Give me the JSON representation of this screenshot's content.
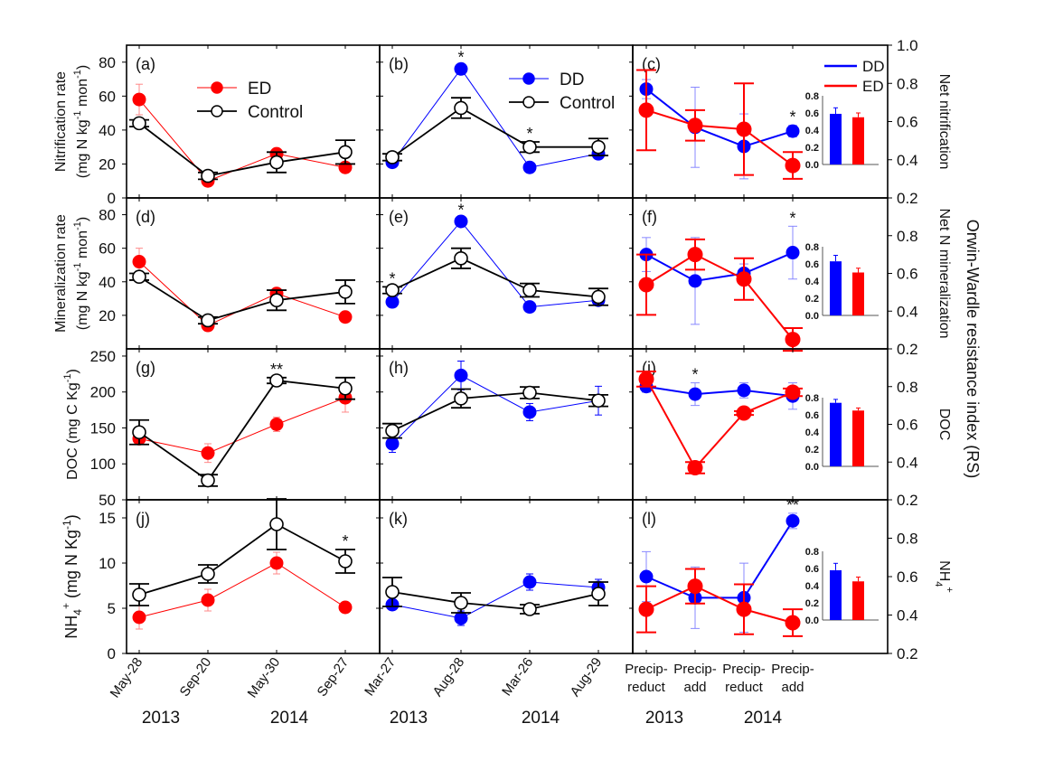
{
  "chart_data": {
    "type": "line",
    "right_axis_title": "Orwin-Wardle resistance index (RS)",
    "columns": [
      {
        "categories": [
          "May-28",
          "Sep-20",
          "May-30",
          "Sep-27"
        ],
        "years": [
          "2013",
          "2014"
        ]
      },
      {
        "categories": [
          "Mar-27",
          "Aug-28",
          "Mar-26",
          "Aug-29"
        ],
        "years": [
          "2013",
          "2014"
        ]
      },
      {
        "categories": [
          "Precip-\nreduct",
          "Precip-\nadd",
          "Precip-\nreduct",
          "Precip-\nadd"
        ],
        "years": [
          "2013",
          "2014"
        ]
      }
    ],
    "colors": {
      "ED": "#ff0000",
      "DD": "#0000ff",
      "Control": "#000000"
    },
    "rows": [
      {
        "ylabel": [
          "Nitrification rate",
          "(mg N kg-1 mon-1)"
        ],
        "ylim": [
          0,
          90
        ],
        "yticks": [
          0,
          20,
          40,
          60,
          80
        ],
        "rs_label": "Net nitrification",
        "rs_ylim": [
          0.2,
          1.0
        ],
        "rs_ticks": [
          0.2,
          0.4,
          0.6,
          0.8,
          1.0
        ],
        "panels": [
          {
            "label": "(a)",
            "legend": [
              "ED",
              "Control"
            ],
            "series": [
              {
                "name": "ED",
                "values": [
                  58,
                  10,
                  26,
                  18
                ],
                "err": [
                  9,
                  2,
                  2,
                  3
                ]
              },
              {
                "name": "Control",
                "values": [
                  44,
                  13,
                  21,
                  27
                ],
                "err": [
                  2,
                  2,
                  6,
                  7
                ]
              }
            ],
            "stars": [
              {
                "i": 3,
                "text": ""
              }
            ]
          },
          {
            "label": "(b)",
            "legend": [
              "DD",
              "Control"
            ],
            "series": [
              {
                "name": "DD",
                "values": [
                  21,
                  76,
                  18,
                  26
                ],
                "err": [
                  1,
                  2,
                  1,
                  3
                ]
              },
              {
                "name": "Control",
                "values": [
                  24,
                  53,
                  30,
                  30
                ],
                "err": [
                  2,
                  6,
                  3,
                  5
                ]
              }
            ],
            "stars": [
              {
                "i": 1,
                "text": "*"
              },
              {
                "i": 2,
                "text": "*"
              }
            ]
          },
          {
            "label": "(c)",
            "legend": [
              "DD",
              "ED"
            ],
            "series": [
              {
                "name": "DD",
                "values": [
                  0.77,
                  0.57,
                  0.47,
                  0.55
                ],
                "err": [
                  0.05,
                  0.21,
                  0.17,
                  0.03
                ]
              },
              {
                "name": "ED",
                "values": [
                  0.66,
                  0.58,
                  0.56,
                  0.37
                ],
                "err": [
                  0.21,
                  0.08,
                  0.24,
                  0.07
                ]
              }
            ],
            "stars": [
              {
                "i": 3,
                "text": "*"
              }
            ],
            "inset": {
              "ylim": [
                0,
                0.8
              ],
              "yticks": [
                "0.8",
                "0.6",
                "0.4",
                "0.2",
                "0.0"
              ],
              "DD": 0.59,
              "ED": 0.55,
              "DD_err": 0.07,
              "ED_err": 0.05
            }
          }
        ]
      },
      {
        "ylabel": [
          "Mineralization rate",
          "(mg N kg-1 mon-1)"
        ],
        "ylim": [
          0,
          90
        ],
        "yticks": [
          20,
          40,
          60,
          80
        ],
        "rs_label": "Net N mineralization",
        "rs_ylim": [
          0.2,
          1.0
        ],
        "rs_ticks": [
          0.2,
          0.4,
          0.6,
          0.8
        ],
        "panels": [
          {
            "label": "(d)",
            "series": [
              {
                "name": "ED",
                "values": [
                  52,
                  14,
                  33,
                  19
                ],
                "err": [
                  8,
                  2,
                  2,
                  2
                ]
              },
              {
                "name": "Control",
                "values": [
                  43,
                  17,
                  29,
                  34
                ],
                "err": [
                  2,
                  2,
                  6,
                  7
                ]
              }
            ],
            "stars": []
          },
          {
            "label": "(e)",
            "series": [
              {
                "name": "DD",
                "values": [
                  28,
                  76,
                  25,
                  29
                ],
                "err": [
                  1,
                  2,
                  1,
                  3
                ]
              },
              {
                "name": "Control",
                "values": [
                  35,
                  54,
                  35,
                  31
                ],
                "err": [
                  2,
                  6,
                  4,
                  5
                ]
              }
            ],
            "stars": [
              {
                "i": 0,
                "text": "*"
              },
              {
                "i": 1,
                "text": "*"
              }
            ]
          },
          {
            "label": "(f)",
            "series": [
              {
                "name": "DD",
                "values": [
                  0.7,
                  0.56,
                  0.6,
                  0.71
                ],
                "err": [
                  0.09,
                  0.23,
                  0.05,
                  0.14
                ]
              },
              {
                "name": "ED",
                "values": [
                  0.54,
                  0.7,
                  0.57,
                  0.25
                ],
                "err": [
                  0.16,
                  0.08,
                  0.11,
                  0.06
                ]
              }
            ],
            "stars": [
              {
                "i": 3,
                "text": "*"
              }
            ],
            "inset": {
              "ylim": [
                0,
                0.8
              ],
              "yticks": [
                "0.8",
                "0.6",
                "0.4",
                "0.2",
                "0.0"
              ],
              "DD": 0.63,
              "ED": 0.5,
              "DD_err": 0.07,
              "ED_err": 0.05
            }
          }
        ]
      },
      {
        "ylabel": [
          "DOC (mg C Kg-1)"
        ],
        "ylim": [
          50,
          260
        ],
        "yticks": [
          50,
          100,
          150,
          200,
          250
        ],
        "rs_label": "DOC",
        "rs_ylim": [
          0.2,
          1.0
        ],
        "rs_ticks": [
          0.2,
          0.4,
          0.6,
          0.8
        ],
        "panels": [
          {
            "label": "(g)",
            "series": [
              {
                "name": "ED",
                "values": [
                  135,
                  115,
                  155,
                  192
                ],
                "err": [
                  8,
                  13,
                  10,
                  20
                ]
              },
              {
                "name": "Control",
                "values": [
                  144,
                  77,
                  216,
                  205
                ],
                "err": [
                  17,
                  8,
                  4,
                  15
                ]
              }
            ],
            "stars": [
              {
                "i": 2,
                "text": "**"
              }
            ]
          },
          {
            "label": "(h)",
            "series": [
              {
                "name": "DD",
                "values": [
                  128,
                  223,
                  172,
                  188
                ],
                "err": [
                  12,
                  20,
                  12,
                  20
                ]
              },
              {
                "name": "Control",
                "values": [
                  146,
                  191,
                  199,
                  188
                ],
                "err": [
                  10,
                  13,
                  8,
                  8
                ]
              }
            ],
            "stars": []
          },
          {
            "label": "(i)",
            "series": [
              {
                "name": "DD",
                "values": [
                  0.8,
                  0.76,
                  0.78,
                  0.75
                ],
                "err": [
                  0.03,
                  0.06,
                  0.04,
                  0.07
                ]
              },
              {
                "name": "ED",
                "values": [
                  0.84,
                  0.37,
                  0.66,
                  0.77
                ],
                "err": [
                  0.04,
                  0.03,
                  0.01,
                  0.02
                ]
              }
            ],
            "stars": [
              {
                "i": 1,
                "text": "*"
              }
            ],
            "inset": {
              "ylim": [
                0,
                0.8
              ],
              "yticks": [
                "0.8",
                "0.6",
                "0.4",
                "0.2",
                "0.0"
              ],
              "DD": 0.74,
              "ED": 0.65,
              "DD_err": 0.04,
              "ED_err": 0.03
            }
          }
        ]
      },
      {
        "ylabel": [
          "NH4+ (mg N Kg-1)"
        ],
        "ylim": [
          0,
          17
        ],
        "yticks": [
          0,
          5,
          10,
          15
        ],
        "rs_label": "NH4+",
        "rs_ylim": [
          0.2,
          1.0
        ],
        "rs_ticks": [
          0.2,
          0.4,
          0.6,
          0.8
        ],
        "panels": [
          {
            "label": "(j)",
            "series": [
              {
                "name": "ED",
                "values": [
                  4,
                  5.9,
                  10,
                  5.1
                ],
                "err": [
                  1.3,
                  1.2,
                  1.2,
                  0.6
                ]
              },
              {
                "name": "Control",
                "values": [
                  6.5,
                  8.8,
                  14.3,
                  10.2
                ],
                "err": [
                  1.2,
                  1,
                  2.8,
                  1.3
                ]
              }
            ],
            "stars": [
              {
                "i": 3,
                "text": "*"
              }
            ]
          },
          {
            "label": "(k)",
            "series": [
              {
                "name": "DD",
                "values": [
                  5.4,
                  3.9,
                  7.9,
                  7.3
                ],
                "err": [
                  0.3,
                  0.8,
                  0.9,
                  0.9
                ]
              },
              {
                "name": "Control",
                "values": [
                  6.8,
                  5.6,
                  4.9,
                  6.6
                ],
                "err": [
                  1.6,
                  1.1,
                  0.5,
                  1.3
                ]
              }
            ],
            "stars": []
          },
          {
            "label": "(l)",
            "series": [
              {
                "name": "DD",
                "values": [
                  0.6,
                  0.49,
                  0.49,
                  0.89
                ],
                "err": [
                  0.13,
                  0.16,
                  0.18,
                  0.04
                ]
              },
              {
                "name": "ED",
                "values": [
                  0.43,
                  0.55,
                  0.43,
                  0.36
                ],
                "err": [
                  0.12,
                  0.09,
                  0.13,
                  0.07
                ]
              }
            ],
            "stars": [
              {
                "i": 3,
                "text": "**"
              }
            ],
            "inset": {
              "ylim": [
                0,
                0.8
              ],
              "yticks": [
                "0.8",
                "0.6",
                "0.4",
                "0.2",
                "0.0"
              ],
              "DD": 0.58,
              "ED": 0.45,
              "DD_err": 0.08,
              "ED_err": 0.05
            }
          }
        ]
      }
    ]
  }
}
